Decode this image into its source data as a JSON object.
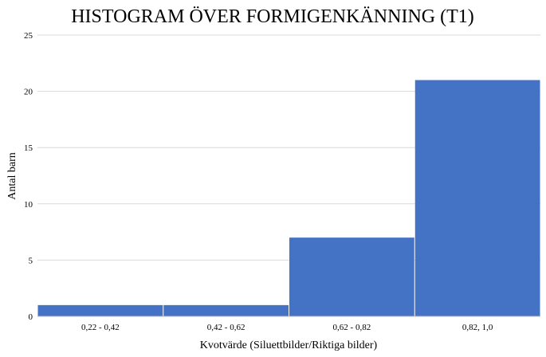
{
  "chart_data": {
    "type": "bar",
    "title": "HISTOGRAM ÖVER FORMIGENKÄNNING (T1)",
    "xlabel": "Kvotvärde (Siluettbilder/Riktiga bilder)",
    "ylabel": "Antal barn",
    "categories": [
      "0,22 - 0,42",
      "0,42 - 0,62",
      "0,62 - 0,82",
      "0,82, 1,0"
    ],
    "values": [
      1,
      1,
      7,
      21
    ],
    "ylim": [
      0,
      25
    ],
    "yticks": [
      0,
      5,
      10,
      15,
      20,
      25
    ],
    "grid": true,
    "legend": "none",
    "colors": {
      "bar": "#4472c4",
      "grid": "#d9d9d9",
      "axis": "#bfbfbf"
    }
  }
}
